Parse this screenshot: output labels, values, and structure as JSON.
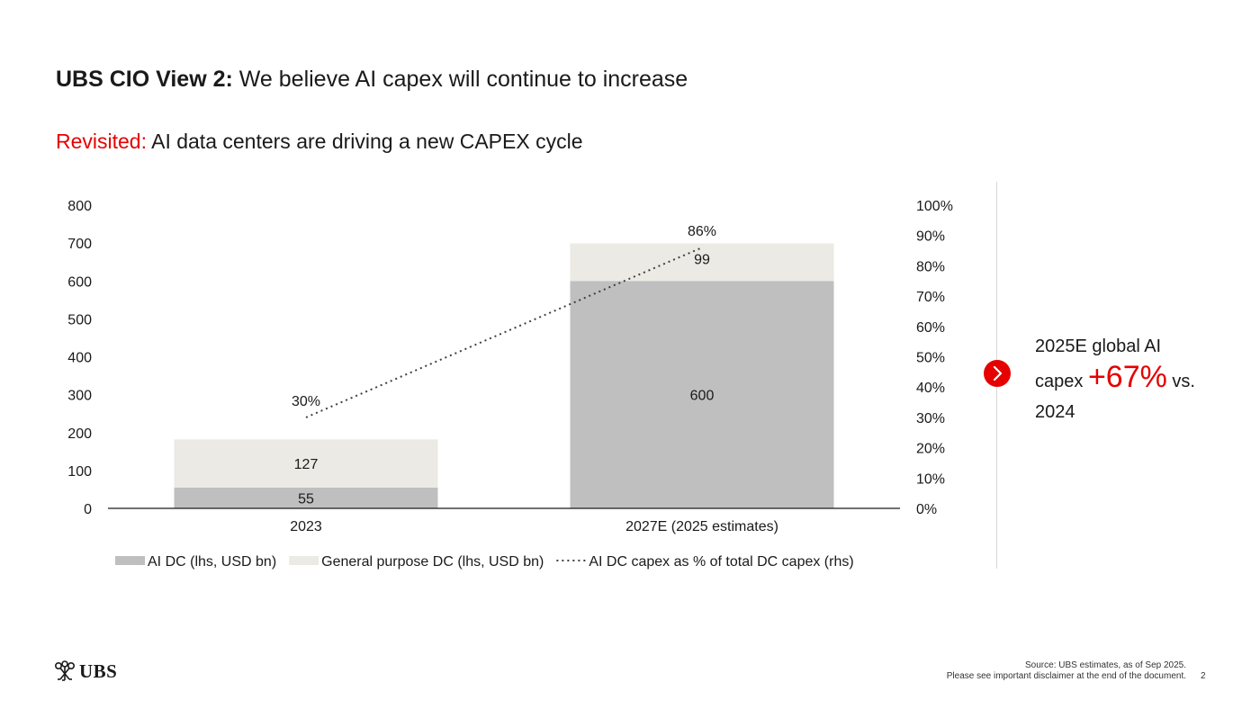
{
  "header": {
    "title_bold": "UBS CIO View 2:",
    "title_rest": " We believe AI capex will continue to increase",
    "subtitle_red": "Revisited:",
    "subtitle_rest": " AI data centers are driving a new CAPEX cycle"
  },
  "chart_data": {
    "type": "bar",
    "stacked": true,
    "categories": [
      "2023",
      "2027E (2025 estimates)"
    ],
    "series": [
      {
        "name": "AI DC (lhs, USD bn)",
        "values": [
          55,
          600
        ],
        "labels": [
          "55",
          "600"
        ],
        "color": "#bfbfbf",
        "axis": "left"
      },
      {
        "name": "General purpose DC (lhs, USD bn)",
        "values": [
          127,
          99
        ],
        "labels": [
          "127",
          "99"
        ],
        "color": "#ebeae4",
        "axis": "left"
      },
      {
        "name": "AI DC capex as % of total DC capex (rhs)",
        "type": "line",
        "style": "dotted",
        "values": [
          30,
          86
        ],
        "labels": [
          "30%",
          "86%"
        ],
        "color": "#404040",
        "axis": "right"
      }
    ],
    "left_axis": {
      "ticks": [
        "0",
        "100",
        "200",
        "300",
        "400",
        "500",
        "600",
        "700",
        "800"
      ],
      "ylim": [
        0,
        800
      ]
    },
    "right_axis": {
      "ticks": [
        "0%",
        "10%",
        "20%",
        "30%",
        "40%",
        "50%",
        "60%",
        "70%",
        "80%",
        "90%",
        "100%"
      ],
      "ylim": [
        0,
        100
      ]
    },
    "legend_position": "bottom",
    "grid": false
  },
  "callout": {
    "line1": "2025E global AI",
    "pre": "capex ",
    "highlight": "+67%",
    "post": " vs.",
    "line3": "2024",
    "icon": "chevron-right-icon",
    "accent_color": "#e60000"
  },
  "footer": {
    "logo_text": "UBS",
    "source": "Source: UBS estimates, as of Sep 2025.",
    "disclaimer": "Please see important disclaimer at the end of the document.",
    "page_number": "2"
  }
}
